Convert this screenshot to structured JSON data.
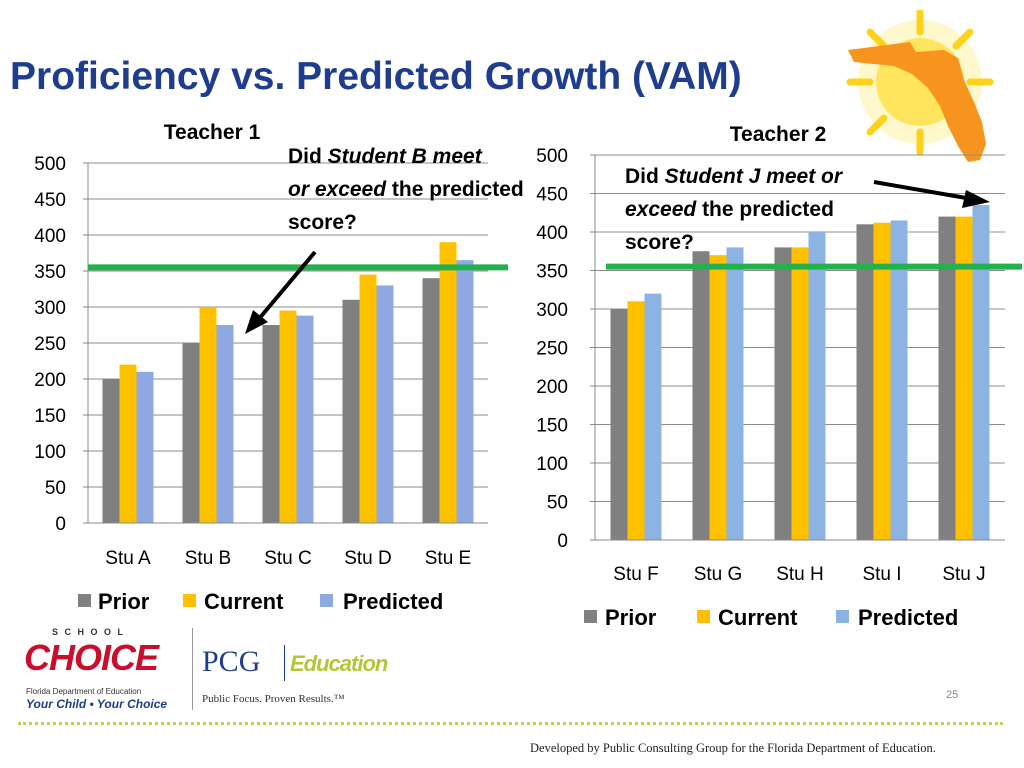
{
  "slide": {
    "title": "Proficiency vs. Predicted Growth (VAM)",
    "slide_number": "25",
    "footer": "Developed by Public Consulting Group for the Florida Department of Education."
  },
  "annotations": {
    "student_b": {
      "prefix": "Did ",
      "italic1": "Student B meet",
      "italic2": "or exceed",
      "suffix": " the predicted score?"
    },
    "student_j": {
      "prefix": "Did ",
      "italic1": "Student J meet or",
      "italic2": "exceed",
      "suffix": " the predicted score?"
    }
  },
  "logos": {
    "school_word": "S C H O O L",
    "choice_word": "CHOICE",
    "fdoe": "Florida Department of Education",
    "tagline": "Your Child • Your Choice",
    "pcg": "PCG",
    "education": "Education",
    "pcg_tagline": "Public Focus. Proven Results.™"
  },
  "colors": {
    "title": "#1f3d8f",
    "prior": "#808080",
    "current": "#ffc000",
    "predicted_t1": "#8ea9e2",
    "predicted_t2": "#8db3e2",
    "proficiency_line": "#22b14c",
    "florida": "#f7941d"
  },
  "chart_data": [
    {
      "type": "bar",
      "title": "Teacher 1",
      "categories": [
        "Stu A",
        "Stu B",
        "Stu C",
        "Stu D",
        "Stu E"
      ],
      "series": [
        {
          "name": "Prior",
          "values": [
            200,
            250,
            275,
            310,
            340
          ]
        },
        {
          "name": "Current",
          "values": [
            220,
            300,
            295,
            345,
            390
          ]
        },
        {
          "name": "Predicted",
          "values": [
            210,
            275,
            288,
            330,
            365
          ]
        }
      ],
      "ylim": [
        0,
        500
      ],
      "yticks": [
        0,
        50,
        100,
        150,
        200,
        250,
        300,
        350,
        400,
        450,
        500
      ],
      "reference_line": 355,
      "grid": true,
      "legend": "bottom"
    },
    {
      "type": "bar",
      "title": "Teacher 2",
      "categories": [
        "Stu F",
        "Stu G",
        "Stu H",
        "Stu I",
        "Stu J"
      ],
      "series": [
        {
          "name": "Prior",
          "values": [
            300,
            375,
            380,
            410,
            420
          ]
        },
        {
          "name": "Current",
          "values": [
            310,
            370,
            380,
            412,
            420
          ]
        },
        {
          "name": "Predicted",
          "values": [
            320,
            380,
            400,
            415,
            435
          ]
        }
      ],
      "ylim": [
        0,
        500
      ],
      "yticks": [
        0,
        50,
        100,
        150,
        200,
        250,
        300,
        350,
        400,
        450,
        500
      ],
      "reference_line": 355,
      "grid": true,
      "legend": "bottom"
    }
  ]
}
